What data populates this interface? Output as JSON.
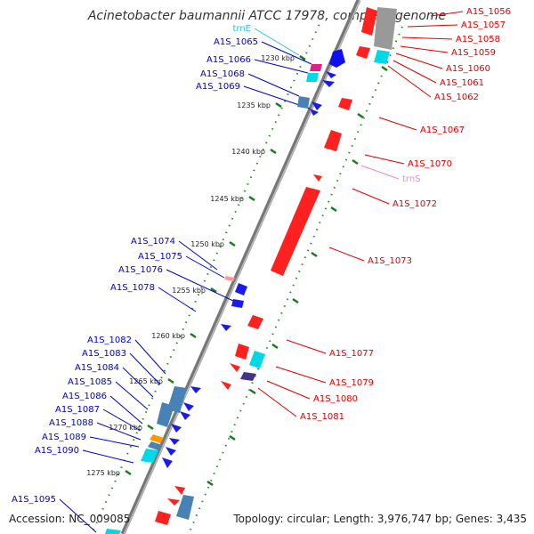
{
  "title": "Acinetobacter baumannii ATCC 17978, complete genome",
  "accession": "Accession: NC_009085",
  "topology": "Topology: circular; Length: 3,976,747 bp; Genes: 3,435",
  "colors": {
    "backbone": "#888888",
    "forward_gene": "#ff0000",
    "reverse_gene": "#0000ff",
    "trna": "#00cccc",
    "tick": "#228B22"
  },
  "kbp_ticks": [
    {
      "label": "1230 kbp"
    },
    {
      "label": "1235 kbp"
    },
    {
      "label": "1240 kbp"
    },
    {
      "label": "1245 kbp"
    },
    {
      "label": "1250 kbp"
    },
    {
      "label": "1255 kbp"
    },
    {
      "label": "1260 kbp"
    },
    {
      "label": "1265 kbp"
    },
    {
      "label": "1270 kbp"
    },
    {
      "label": "1275 kbp"
    }
  ],
  "genes_reverse": [
    {
      "label": "trnE"
    },
    {
      "label": "A1S_1065"
    },
    {
      "label": "A1S_1066"
    },
    {
      "label": "A1S_1068"
    },
    {
      "label": "A1S_1069"
    },
    {
      "label": "A1S_1074"
    },
    {
      "label": "A1S_1075"
    },
    {
      "label": "A1S_1076"
    },
    {
      "label": "A1S_1078"
    },
    {
      "label": "A1S_1082"
    },
    {
      "label": "A1S_1083"
    },
    {
      "label": "A1S_1084"
    },
    {
      "label": "A1S_1085"
    },
    {
      "label": "A1S_1086"
    },
    {
      "label": "A1S_1087"
    },
    {
      "label": "A1S_1088"
    },
    {
      "label": "A1S_1089"
    },
    {
      "label": "A1S_1090"
    },
    {
      "label": "A1S_1095"
    }
  ],
  "genes_forward": [
    {
      "label": "A1S_1056"
    },
    {
      "label": "A1S_1057"
    },
    {
      "label": "A1S_1058"
    },
    {
      "label": "A1S_1059"
    },
    {
      "label": "A1S_1060"
    },
    {
      "label": "A1S_1061"
    },
    {
      "label": "A1S_1062"
    },
    {
      "label": "A1S_1067"
    },
    {
      "label": "A1S_1070"
    },
    {
      "label": "trnS"
    },
    {
      "label": "A1S_1072"
    },
    {
      "label": "A1S_1073"
    },
    {
      "label": "A1S_1077"
    },
    {
      "label": "A1S_1079"
    },
    {
      "label": "A1S_1080"
    },
    {
      "label": "A1S_1081"
    }
  ]
}
